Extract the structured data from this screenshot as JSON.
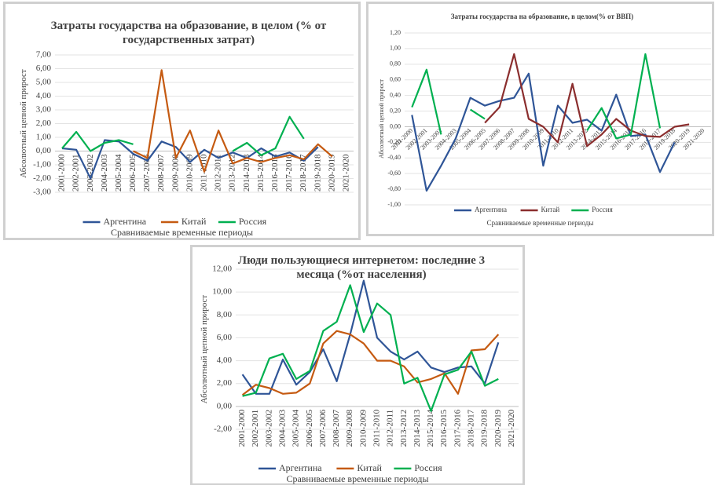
{
  "chart_data": [
    {
      "type": "line",
      "title": "Затраты государства на образование, в целом (% от государственных затрат)",
      "y_label": "Абсолютный цепной прирост",
      "x_label": "Сравниваемые временные периоды",
      "categories": [
        "2001-2000",
        "2002-2001",
        "2003-2002",
        "2004-2003",
        "2005-2004",
        "2006-2005",
        "2007-2006",
        "2008-2007",
        "2009-2008",
        "2010-2009",
        "2011-2010",
        "2012-2011",
        "2013-2012",
        "2014-2013",
        "2015-2014",
        "2016-2015",
        "2017-2016",
        "2018-2017",
        "2019-2018",
        "2020-2019",
        "2021-2020"
      ],
      "series": [
        {
          "name": "Аргентина",
          "color": "#2f5597",
          "values": [
            0.2,
            0.1,
            -2.0,
            0.8,
            0.7,
            -0.2,
            -0.7,
            0.7,
            0.3,
            -0.8,
            0.1,
            -0.5,
            -0.1,
            -0.5,
            0.2,
            -0.4,
            -0.1,
            -0.7,
            0.3,
            null,
            null
          ]
        },
        {
          "name": "Китай",
          "color": "#c55a11",
          "values": [
            null,
            null,
            null,
            null,
            null,
            0.0,
            -0.5,
            5.9,
            -0.5,
            1.5,
            -1.5,
            1.5,
            -0.9,
            -0.5,
            -0.8,
            -0.5,
            -0.3,
            -0.6,
            0.5,
            -0.4,
            null
          ]
        },
        {
          "name": "Россия",
          "color": "#00b050",
          "values": [
            0.2,
            1.4,
            0.0,
            0.6,
            0.8,
            0.5,
            null,
            null,
            null,
            null,
            null,
            null,
            0.0,
            0.6,
            -0.3,
            0.2,
            2.5,
            0.9,
            null,
            null,
            null
          ]
        }
      ],
      "ylim": [
        -3,
        7
      ],
      "yticks": [
        {
          "value": -3,
          "label": "-3,00"
        },
        {
          "value": -2,
          "label": "-2,00"
        },
        {
          "value": -1,
          "label": "-1,00"
        },
        {
          "value": 0,
          "label": "0,00"
        },
        {
          "value": 1,
          "label": "1,00"
        },
        {
          "value": 2,
          "label": "2,00"
        },
        {
          "value": 3,
          "label": "3,00"
        },
        {
          "value": 4,
          "label": "4,00"
        },
        {
          "value": 5,
          "label": "5,00"
        },
        {
          "value": 6,
          "label": "6,00"
        },
        {
          "value": 7,
          "label": "7,00"
        }
      ],
      "grid": true,
      "legend": "bottom"
    },
    {
      "type": "line",
      "title": "Затраты государства на образование, в целом(% от ВВП)",
      "y_label": "Абсолютный цепной прирост",
      "x_label": "Сравниваемые временные периоды",
      "categories": [
        "2001-2000",
        "2002-2001",
        "2003-2002",
        "2004-2003",
        "2005-2004",
        "2006-2005",
        "2007-2006",
        "2008-2007",
        "2009-2008",
        "2010-2009",
        "2011-2010",
        "2012-2011",
        "2013-2012",
        "2014-2013",
        "2015-2014",
        "2016-2015",
        "2017-2016",
        "2018-2017",
        "2019-2018",
        "2020-2019",
        "2021-2020"
      ],
      "series": [
        {
          "name": "Аргентина",
          "color": "#2f5597",
          "values": [
            0.15,
            -0.82,
            -0.5,
            -0.15,
            0.37,
            0.27,
            0.33,
            0.37,
            0.68,
            -0.5,
            0.27,
            0.05,
            0.09,
            -0.05,
            0.41,
            -0.12,
            -0.1,
            -0.58,
            -0.2,
            null,
            null
          ]
        },
        {
          "name": "Китай",
          "color": "#8b2e2e",
          "values": [
            null,
            null,
            null,
            null,
            null,
            0.05,
            0.25,
            0.93,
            0.1,
            0.0,
            -0.2,
            0.55,
            -0.25,
            -0.1,
            0.1,
            -0.05,
            -0.12,
            -0.13,
            0.0,
            0.03,
            null
          ]
        },
        {
          "name": "Россия",
          "color": "#00b050",
          "values": [
            0.25,
            0.73,
            -0.1,
            null,
            0.22,
            0.1,
            null,
            null,
            null,
            null,
            null,
            null,
            -0.05,
            0.24,
            -0.15,
            -0.1,
            0.93,
            -0.02,
            null,
            null,
            null
          ]
        }
      ],
      "ylim": [
        -1,
        1.2
      ],
      "yticks": [
        {
          "value": -1,
          "label": "-1,00"
        },
        {
          "value": -0.8,
          "label": "-0,80"
        },
        {
          "value": -0.6,
          "label": "-0,60"
        },
        {
          "value": -0.4,
          "label": "-0,40"
        },
        {
          "value": -0.2,
          "label": "-0,20"
        },
        {
          "value": 0,
          "label": "0,00"
        },
        {
          "value": 0.2,
          "label": "0,20"
        },
        {
          "value": 0.4,
          "label": "0,40"
        },
        {
          "value": 0.6,
          "label": "0,60"
        },
        {
          "value": 0.8,
          "label": "0,80"
        },
        {
          "value": 1,
          "label": "1,00"
        },
        {
          "value": 1.2,
          "label": "1,20"
        }
      ],
      "grid": true,
      "legend": "bottom"
    },
    {
      "type": "line",
      "title": "Люди пользующиеся интернетом: последние 3 месяца (%от населения)",
      "y_label": "Абсолютный цепной прирост",
      "x_label": "Сравниваемые временные периоды",
      "categories": [
        "2001-2000",
        "2002-2001",
        "2003-2002",
        "2004-2003",
        "2005-2004",
        "2006-2005",
        "2007-2006",
        "2008-2007",
        "2009-2008",
        "2010-2009",
        "2011-2010",
        "2012-2011",
        "2013-2012",
        "2014-2013",
        "2015-2014",
        "2016-2015",
        "2017-2016",
        "2018-2017",
        "2019-2018",
        "2020-2019",
        "2021-2020"
      ],
      "series": [
        {
          "name": "Аргентина",
          "color": "#2f5597",
          "values": [
            2.8,
            1.1,
            1.1,
            4.1,
            1.9,
            3.0,
            5.0,
            2.2,
            6.3,
            11.0,
            6.0,
            4.8,
            4.1,
            4.8,
            3.4,
            3.0,
            3.4,
            3.5,
            2.0,
            5.6,
            null
          ]
        },
        {
          "name": "Китай",
          "color": "#c55a11",
          "values": [
            1.0,
            1.9,
            1.6,
            1.1,
            1.2,
            2.0,
            5.5,
            6.6,
            6.3,
            5.5,
            4.0,
            4.0,
            3.5,
            2.1,
            2.4,
            2.9,
            1.1,
            4.9,
            5.0,
            6.3,
            null
          ]
        },
        {
          "name": "Россия",
          "color": "#00b050",
          "values": [
            0.9,
            1.2,
            4.2,
            4.6,
            2.4,
            3.1,
            6.6,
            7.4,
            10.6,
            6.5,
            9.0,
            8.0,
            2.0,
            2.5,
            -0.4,
            2.8,
            3.2,
            4.8,
            1.8,
            2.4,
            null
          ]
        }
      ],
      "ylim": [
        -2,
        12
      ],
      "yticks": [
        {
          "value": -2,
          "label": "-2,00"
        },
        {
          "value": 0,
          "label": "0,00"
        },
        {
          "value": 2,
          "label": "2,00"
        },
        {
          "value": 4,
          "label": "4,00"
        },
        {
          "value": 6,
          "label": "6,00"
        },
        {
          "value": 8,
          "label": "8,00"
        },
        {
          "value": 10,
          "label": "10,00"
        },
        {
          "value": 12,
          "label": "12,00"
        }
      ],
      "grid": true,
      "legend": "bottom"
    }
  ]
}
